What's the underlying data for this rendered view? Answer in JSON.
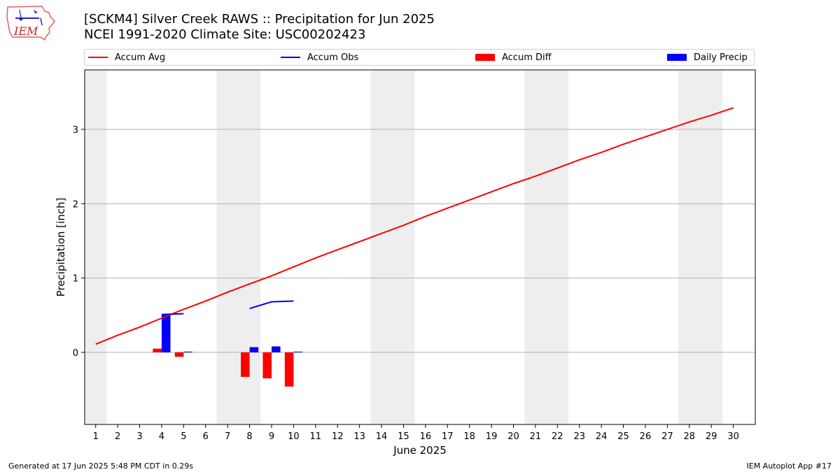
{
  "logo": {
    "text": "IEM"
  },
  "header": {
    "title": "[SCKM4] Silver Creek RAWS :: Precipitation for Jun 2025",
    "subtitle": "NCEI 1991-2020 Climate Site: USC00202423"
  },
  "legend": {
    "items": [
      {
        "label": "Accum Avg",
        "color": "#ff0000",
        "kind": "line"
      },
      {
        "label": "Accum Obs",
        "color": "#0000ff",
        "kind": "line"
      },
      {
        "label": "Accum Diff",
        "color": "#ff0000",
        "kind": "box"
      },
      {
        "label": "Daily Precip",
        "color": "#0000ff",
        "kind": "box"
      }
    ]
  },
  "chart_data": {
    "type": "bar",
    "xlabel": "June 2025",
    "ylabel": "Precipitation [inch]",
    "xlim": [
      0.5,
      31.0
    ],
    "ylim": [
      -0.97,
      3.8
    ],
    "x_ticks": [
      1,
      2,
      3,
      4,
      5,
      6,
      7,
      8,
      9,
      10,
      11,
      12,
      13,
      14,
      15,
      16,
      17,
      18,
      19,
      20,
      21,
      22,
      23,
      24,
      25,
      26,
      27,
      28,
      29,
      30
    ],
    "y_ticks": [
      0,
      1,
      2,
      3
    ],
    "grid": "horizontal",
    "weekend_shading": [
      [
        0.5,
        1.5
      ],
      [
        6.5,
        8.5
      ],
      [
        13.5,
        15.5
      ],
      [
        20.5,
        22.5
      ],
      [
        27.5,
        29.5
      ]
    ],
    "series": [
      {
        "name": "Accum Avg",
        "kind": "line",
        "color": "#ff0000",
        "x": [
          1,
          2,
          3,
          4,
          5,
          6,
          7,
          8,
          9,
          10,
          11,
          12,
          13,
          14,
          15,
          16,
          17,
          18,
          19,
          20,
          21,
          22,
          23,
          24,
          25,
          26,
          27,
          28,
          29,
          30
        ],
        "values": [
          0.11,
          0.23,
          0.34,
          0.46,
          0.58,
          0.69,
          0.81,
          0.92,
          1.03,
          1.15,
          1.27,
          1.38,
          1.49,
          1.6,
          1.71,
          1.83,
          1.94,
          2.05,
          2.16,
          2.27,
          2.37,
          2.48,
          2.59,
          2.69,
          2.8,
          2.9,
          3.0,
          3.1,
          3.19,
          3.29
        ]
      },
      {
        "name": "Accum Obs",
        "kind": "line",
        "color": "#0000ff",
        "segments": [
          {
            "x": [
              4,
              5
            ],
            "values": [
              0.51,
              0.52
            ]
          },
          {
            "x": [
              8,
              9,
              10
            ],
            "values": [
              0.59,
              0.68,
              0.69
            ]
          }
        ]
      },
      {
        "name": "Accum Diff",
        "kind": "bar",
        "color": "#ff0000",
        "x": [
          4,
          5,
          8,
          9,
          10
        ],
        "values": [
          0.05,
          -0.06,
          -0.33,
          -0.35,
          -0.46
        ]
      },
      {
        "name": "Daily Precip",
        "kind": "bar",
        "color": "#0000ff",
        "x": [
          4,
          5,
          8,
          9,
          10
        ],
        "values": [
          0.51,
          0.01,
          0.07,
          0.08,
          0.01
        ]
      }
    ]
  },
  "footer": {
    "left": "Generated at 17 Jun 2025 5:48 PM CDT in 0.29s",
    "right": "IEM Autoplot App #17"
  }
}
